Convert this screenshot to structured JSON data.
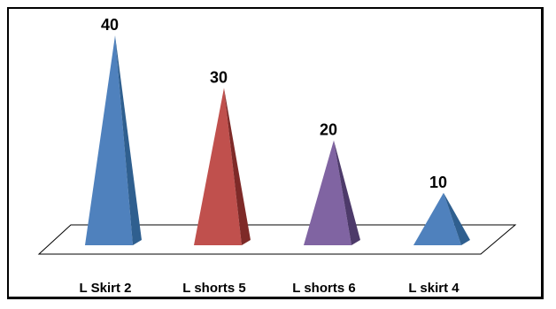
{
  "chart_data": {
    "type": "bar",
    "bar_shape": "pyramid",
    "categories": [
      "L Skirt 2",
      "L shorts 5",
      "L shorts 6",
      "L skirt 4"
    ],
    "values": [
      40,
      30,
      20,
      10
    ],
    "colors": [
      "#4f81bd",
      "#c0504d",
      "#8064a2",
      "#4f81bd"
    ],
    "shade_colors": [
      "#2f5f8f",
      "#7e2a28",
      "#4d3a6a",
      "#2f5f8f"
    ],
    "title": "",
    "xlabel": "",
    "ylabel": "",
    "ylim": [
      0,
      40
    ],
    "data_labels": true,
    "grid": false,
    "legend": "none"
  }
}
